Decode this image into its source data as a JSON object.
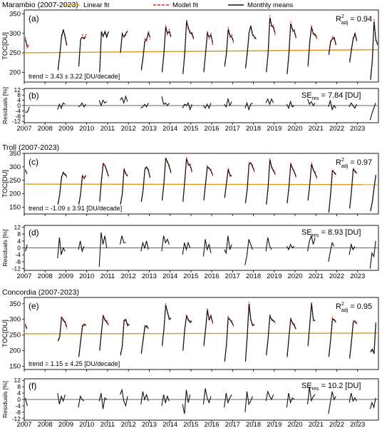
{
  "legend": {
    "items": [
      {
        "key": "linear",
        "label": "Linear fit",
        "color": "#D89A1E",
        "dash": false
      },
      {
        "key": "model",
        "label": "Model fit",
        "color": "#E8231D",
        "dash": true
      },
      {
        "key": "monthly",
        "label": "Monthly means",
        "color": "#111111",
        "dash": false
      }
    ]
  },
  "colors": {
    "linear": "#D89A1E",
    "model": "#E8231D",
    "monthly": "#111111",
    "axis": "#000000",
    "zero": "#333333"
  },
  "x_years": [
    "2007",
    "2008",
    "2009",
    "2010",
    "2011",
    "2012",
    "2013",
    "2014",
    "2015",
    "2016",
    "2017",
    "2018",
    "2019",
    "2020",
    "2021",
    "2022",
    "2023"
  ],
  "chart_data": [
    {
      "id": "marambio",
      "station_title": "Marambio (2007-2023)",
      "toc": {
        "panel_label": "(a)",
        "type": "line",
        "ylabel": "TOC[DU]",
        "yticks": [
          200,
          250,
          300,
          350
        ],
        "ylim": [
          175,
          360
        ],
        "r2_text": "R",
        "r2_sup": "2",
        "r2_sub": "adj",
        "r2_value": " = 0.94",
        "trend_text": "trend = 3.43 ± 3.22 [DU/decade]",
        "linear_fit": {
          "start": 250,
          "end": 258
        },
        "seasons": {
          "2007": [
            285,
            268,
            266
          ],
          "2008": [
            205,
            245,
            290,
            310,
            290,
            270
          ],
          "2009": [
            215,
            285,
            290,
            288,
            292
          ],
          "2010": [
            200,
            305,
            292,
            305,
            290,
            305
          ],
          "2011": [
            250,
            300,
            290,
            300,
            305
          ],
          "2012": [
            205,
            240,
            280,
            285,
            300,
            290
          ],
          "2013": [
            200,
            250,
            315,
            300,
            305,
            292
          ],
          "2014": [
            195,
            250,
            330,
            315,
            300,
            302,
            285
          ],
          "2015": [
            200,
            250,
            300,
            290,
            295,
            275
          ],
          "2016": [
            215,
            250,
            310,
            295,
            290,
            280
          ],
          "2017": [
            210,
            250,
            300,
            320,
            295,
            292,
            285
          ],
          "2018": [
            200,
            250,
            340,
            320,
            315,
            300
          ],
          "2019": [
            195,
            250,
            325,
            310,
            305,
            290
          ],
          "2020": [
            215,
            280,
            315,
            300,
            295,
            290
          ],
          "2021": [
            245,
            280,
            285,
            290,
            270
          ],
          "2022": [
            225,
            260,
            285,
            300,
            280
          ],
          "2023": [
            180,
            230,
            330,
            285,
            270
          ]
        }
      },
      "resid": {
        "panel_label": "(b)",
        "ylabel": "Residuals [%]",
        "yticks": [
          -12,
          -8,
          -4,
          0,
          4,
          8,
          12
        ],
        "ylim": [
          -13,
          13
        ],
        "se_text": "SE",
        "se_sub": "res",
        "se_value": " = 7.84 [DU]",
        "seasons": {
          "2007": [
            -5,
            -5,
            -1
          ],
          "2008": [
            -3,
            1,
            -2,
            2,
            1
          ],
          "2009": [
            -1,
            0,
            2,
            -1,
            1
          ],
          "2010": [
            4,
            0,
            4,
            2,
            3
          ],
          "2011": [
            4,
            6,
            2,
            7,
            3
          ],
          "2012": [
            -2,
            -1,
            1,
            -1,
            2
          ],
          "2013": [
            7,
            1,
            2,
            0,
            2
          ],
          "2014": [
            -2,
            1,
            0,
            2,
            -3,
            1
          ],
          "2015": [
            0,
            -2,
            1,
            -2,
            2
          ],
          "2016": [
            1,
            -1,
            5,
            0,
            3
          ],
          "2017": [
            -2,
            2,
            -3,
            1,
            2
          ],
          "2018": [
            2,
            5,
            1,
            5,
            2
          ],
          "2019": [
            1,
            -2,
            3,
            -1,
            0
          ],
          "2020": [
            5,
            1,
            3,
            0,
            2
          ],
          "2021": [
            -1,
            4,
            -3,
            0,
            -2
          ],
          "2022": [
            -1,
            2,
            0,
            -2,
            1
          ],
          "2023": [
            -11,
            -6,
            -2,
            2
          ]
        }
      }
    },
    {
      "id": "troll",
      "station_title": "Troll (2007-2023)",
      "toc": {
        "panel_label": "(c)",
        "type": "line",
        "ylabel": "TOC[DU]",
        "yticks": [
          150,
          200,
          250,
          300,
          350
        ],
        "ylim": [
          125,
          350
        ],
        "r2_text": "R",
        "r2_sup": "2",
        "r2_sub": "adj",
        "r2_value": " = 0.97",
        "trend_text": "trend = -1.09 ± 3.91 [DU/decade]",
        "linear_fit": {
          "start": 236,
          "end": 234
        },
        "seasons": {
          "2007": [
            285,
            278
          ],
          "2008": [
            160,
            200,
            260,
            280,
            270,
            265
          ],
          "2009": [
            160,
            200,
            265,
            260,
            265
          ],
          "2010": [
            170,
            250,
            310,
            305,
            285,
            265
          ],
          "2011": [
            160,
            200,
            290,
            275,
            265
          ],
          "2012": [
            170,
            215,
            290,
            300,
            285,
            260
          ],
          "2013": [
            175,
            240,
            330,
            320,
            300,
            280
          ],
          "2014": [
            170,
            250,
            330,
            310,
            305,
            285
          ],
          "2015": [
            175,
            240,
            300,
            295,
            285,
            270
          ],
          "2016": [
            185,
            240,
            290,
            270,
            265
          ],
          "2017": [
            165,
            220,
            310,
            315,
            300,
            285
          ],
          "2018": [
            160,
            225,
            325,
            300,
            285,
            275
          ],
          "2019": [
            165,
            225,
            310,
            295,
            280,
            265
          ],
          "2020": [
            175,
            235,
            310,
            290,
            275,
            260
          ],
          "2021": [
            130,
            200,
            285,
            280,
            270
          ],
          "2022": [
            145,
            210,
            290,
            285,
            275
          ],
          "2023": [
            135,
            170,
            220,
            270
          ]
        }
      },
      "resid": {
        "panel_label": "(d)",
        "ylabel": "Residuals [%]",
        "yticks": [
          -12,
          -8,
          -4,
          0,
          4,
          8,
          12
        ],
        "ylim": [
          -13,
          13
        ],
        "se_text": "SE",
        "se_sub": "res",
        "se_value": " = 8.93 [DU]",
        "seasons": {
          "2007": [
            -2,
            2
          ],
          "2008": [
            -6,
            6,
            -4,
            0,
            -2
          ],
          "2009": [
            -1,
            4,
            -2,
            1
          ],
          "2010": [
            -11,
            9,
            2,
            7,
            0
          ],
          "2011": [
            2,
            7,
            3,
            3
          ],
          "2012": [
            -2,
            3,
            0,
            4,
            -1
          ],
          "2013": [
            -2,
            7,
            3,
            5,
            2
          ],
          "2014": [
            -4,
            3,
            -1,
            3,
            0
          ],
          "2015": [
            -5,
            5,
            -1,
            2,
            -3
          ],
          "2016": [
            -1,
            -3,
            7,
            -1,
            2
          ],
          "2017": [
            -10,
            -4,
            5,
            2,
            -1
          ],
          "2018": [
            -2,
            6,
            1,
            -1
          ],
          "2019": [
            1,
            -1,
            2,
            0,
            1
          ],
          "2020": [
            -2,
            4,
            7,
            2,
            6
          ],
          "2021": [
            -8,
            -2,
            3,
            1
          ],
          "2022": [
            -4,
            2,
            -1,
            1
          ],
          "2023": [
            -12,
            -3,
            -5,
            4
          ]
        }
      }
    },
    {
      "id": "concordia",
      "station_title": "Concordia (2007-2023)",
      "toc": {
        "panel_label": "(e)",
        "type": "line",
        "ylabel": "TOC[DU]",
        "yticks": [
          150,
          200,
          250,
          300,
          350
        ],
        "ylim": [
          140,
          370
        ],
        "r2_text": "R",
        "r2_sup": "2",
        "r2_sub": "adj",
        "r2_value": " = 0.95",
        "trend_text": "trend = 1.15 ± 4.25 [DU/decade]",
        "linear_fit": {
          "start": 254,
          "end": 256
        },
        "seasons": {
          "2007": [
            280,
            272
          ],
          "2008": [
            230,
            245,
            305,
            300,
            290,
            275
          ],
          "2009": [
            180,
            230,
            275,
            285,
            280
          ],
          "2010": [
            200,
            260,
            310,
            300,
            290,
            285
          ],
          "2011": [
            185,
            215,
            295,
            300,
            280,
            285
          ],
          "2012": [
            190,
            235,
            275,
            280,
            270
          ],
          "2013": [
            215,
            270,
            345,
            325,
            300,
            305
          ],
          "2014": [
            200,
            270,
            310,
            300,
            290,
            295
          ],
          "2015": [
            215,
            270,
            330,
            300,
            310,
            290
          ],
          "2016": [
            165,
            220,
            305,
            300,
            290,
            280
          ],
          "2017": [
            165,
            250,
            350,
            300,
            280,
            285
          ],
          "2018": [
            185,
            240,
            310,
            300,
            295,
            290
          ],
          "2019": [
            180,
            245,
            300,
            290,
            280,
            270
          ],
          "2020": [
            215,
            285,
            350,
            300,
            295
          ],
          "2021": [
            180,
            235,
            300,
            300,
            290
          ],
          "2022": [
            175,
            230,
            290,
            295,
            285
          ],
          "2023": [
            195,
            205,
            190,
            290
          ]
        }
      },
      "resid": {
        "panel_label": "(f)",
        "ylabel": "Residuals [%]",
        "yticks": [
          -12,
          -8,
          -4,
          0,
          4,
          8,
          12
        ],
        "ylim": [
          -13,
          13
        ],
        "se_text": "SE",
        "se_sub": "res",
        "se_value": " = 10.2 [DU]",
        "seasons": {
          "2007": [
            1,
            -4
          ],
          "2008": [
            4,
            -3,
            2,
            -1,
            3
          ],
          "2009": [
            -5,
            2,
            0,
            -1
          ],
          "2010": [
            -1,
            4,
            -6,
            1,
            0
          ],
          "2011": [
            3,
            6,
            -1,
            -4,
            2
          ],
          "2012": [
            -3,
            5,
            0,
            3,
            -1
          ],
          "2013": [
            -4,
            3,
            -2,
            2,
            -1
          ],
          "2014": [
            -3,
            -9,
            6,
            -2,
            3
          ],
          "2015": [
            -3,
            7,
            1,
            -2,
            2
          ],
          "2016": [
            -5,
            4,
            -2,
            1,
            3
          ],
          "2017": [
            -8,
            5,
            -3,
            -1,
            2
          ],
          "2018": [
            -1,
            5,
            2,
            0,
            3
          ],
          "2019": [
            -5,
            4,
            -2,
            1,
            0
          ],
          "2020": [
            -3,
            8,
            -1,
            2,
            3
          ],
          "2021": [
            -9,
            -2,
            5,
            0,
            2
          ],
          "2022": [
            -2,
            4,
            -1,
            1,
            -1
          ],
          "2023": [
            -6,
            -2,
            -5,
            1
          ]
        }
      }
    }
  ]
}
